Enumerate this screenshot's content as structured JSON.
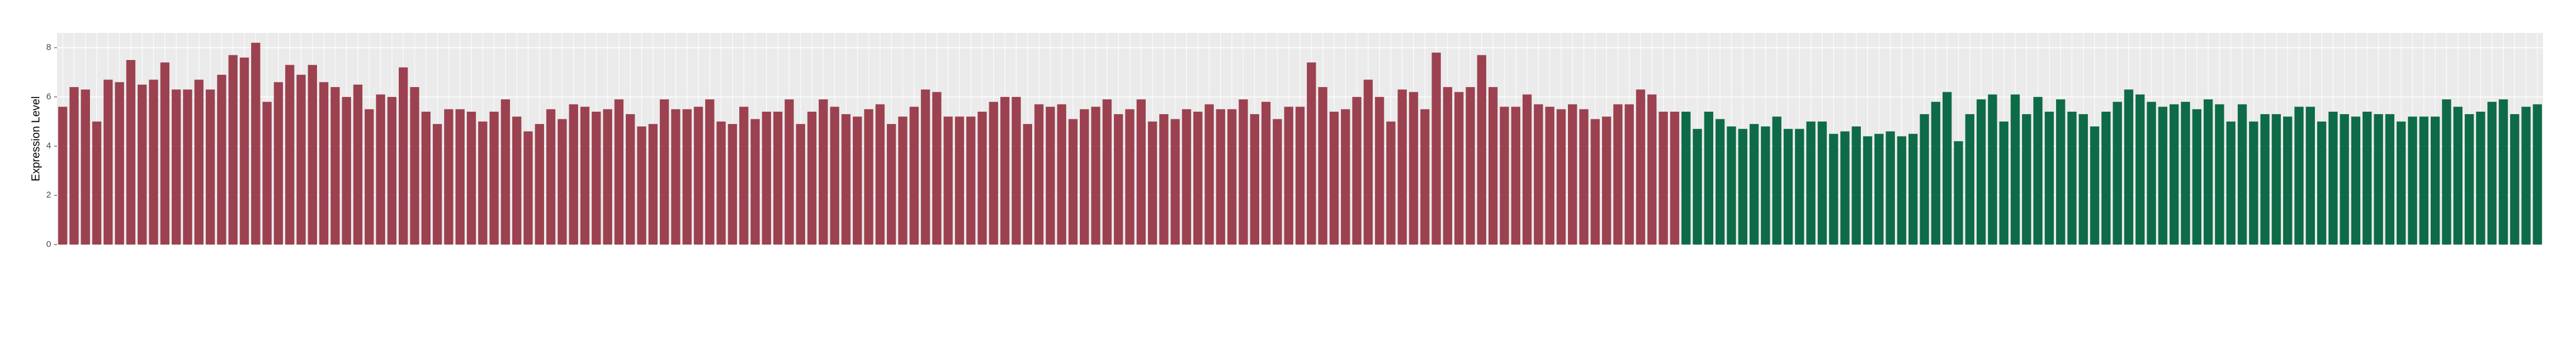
{
  "chart_data": {
    "type": "bar",
    "ylabel": "Expression Level",
    "ylim": [
      0,
      8.6
    ],
    "yticks": [
      0,
      2,
      4,
      6,
      8
    ],
    "grid": true,
    "series": [
      {
        "color": "#9c4150",
        "values": [
          5.6,
          6.4,
          6.3,
          5.0,
          6.7,
          6.6,
          7.5,
          6.5,
          6.7,
          7.4,
          6.3,
          6.3,
          6.7,
          6.3,
          6.9,
          7.7,
          7.6,
          8.2,
          5.8,
          6.6,
          7.3,
          6.9,
          7.3,
          6.6,
          6.4,
          6.0,
          6.5,
          5.5,
          6.1,
          6.0,
          7.2,
          6.4,
          5.4,
          4.9,
          5.5,
          5.5,
          5.4,
          5.0,
          5.4,
          5.9,
          5.2,
          4.6,
          4.9,
          5.5,
          5.1,
          5.7,
          5.6,
          5.4,
          5.5,
          5.9,
          5.3,
          4.8,
          4.9,
          5.9,
          5.5,
          5.5,
          5.6,
          5.9,
          5.0,
          4.9,
          5.6,
          5.1,
          5.4,
          5.4,
          5.9,
          4.9,
          5.4,
          5.9,
          5.6,
          5.3,
          5.2,
          5.5,
          5.7,
          4.9,
          5.2,
          5.6,
          6.3,
          6.2,
          5.2,
          5.2,
          5.2,
          5.4,
          5.8,
          6.0,
          6.0,
          4.9,
          5.7,
          5.6,
          5.7,
          5.1,
          5.5,
          5.6,
          5.9,
          5.3,
          5.5,
          5.9,
          5.0,
          5.3,
          5.1,
          5.5,
          5.4,
          5.7,
          5.5,
          5.5,
          5.9,
          5.3,
          5.8,
          5.1,
          5.6,
          5.6,
          7.4,
          6.4,
          5.4,
          5.5,
          6.0,
          6.7,
          6.0,
          5.0,
          6.3,
          6.2,
          5.5,
          7.8,
          6.4,
          6.2,
          6.4,
          7.7,
          6.4,
          5.6,
          5.6,
          6.1,
          5.7,
          5.6,
          5.5,
          5.7,
          5.5,
          5.1,
          5.2,
          5.7,
          5.7,
          6.3,
          6.1,
          5.4,
          5.4
        ]
      },
      {
        "color": "#0e6b47",
        "values": [
          5.4,
          4.7,
          5.4,
          5.1,
          4.8,
          4.7,
          4.9,
          4.8,
          5.2,
          4.7,
          4.7,
          5.0,
          5.0,
          4.5,
          4.6,
          4.8,
          4.4,
          4.5,
          4.6,
          4.4,
          4.5,
          5.3,
          5.8,
          6.2,
          4.2,
          5.3,
          5.9,
          6.1,
          5.0,
          6.1,
          5.3,
          6.0,
          5.4,
          5.9,
          5.4,
          5.3,
          4.8,
          5.4,
          5.8,
          6.3,
          6.1,
          5.8,
          5.6,
          5.7,
          5.8,
          5.5,
          5.9,
          5.7,
          5.0,
          5.7,
          5.0,
          5.3,
          5.3,
          5.2,
          5.6,
          5.6,
          5.0,
          5.4,
          5.3,
          5.2,
          5.4,
          5.3,
          5.3,
          5.0,
          5.2,
          5.2,
          5.2,
          5.9,
          5.6,
          5.3,
          5.4,
          5.8,
          5.9,
          5.3,
          5.6,
          5.7
        ]
      }
    ]
  }
}
